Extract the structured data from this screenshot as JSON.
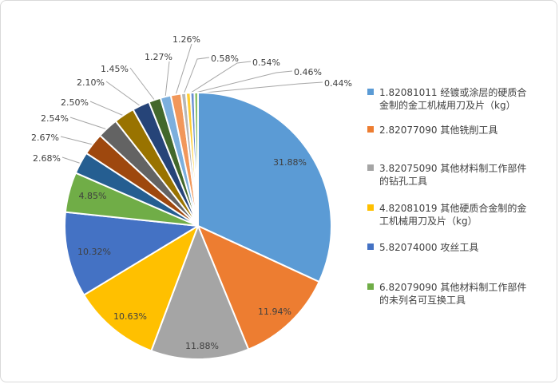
{
  "chart_data": {
    "type": "pie",
    "title": "",
    "legend_position": "right",
    "value_format": "percent",
    "slices": [
      {
        "label": "31.88%",
        "value": 31.88,
        "color": "#5B9BD5"
      },
      {
        "label": "11.94%",
        "value": 11.94,
        "color": "#ED7D31"
      },
      {
        "label": "11.88%",
        "value": 11.88,
        "color": "#A5A5A5"
      },
      {
        "label": "10.63%",
        "value": 10.63,
        "color": "#FFC000"
      },
      {
        "label": "10.32%",
        "value": 10.32,
        "color": "#4472C4"
      },
      {
        "label": "4.85%",
        "value": 4.85,
        "color": "#70AD47"
      },
      {
        "label": "2.68%",
        "value": 2.68,
        "color": "#255E91"
      },
      {
        "label": "2.67%",
        "value": 2.67,
        "color": "#9E480E"
      },
      {
        "label": "2.54%",
        "value": 2.54,
        "color": "#636363"
      },
      {
        "label": "2.50%",
        "value": 2.5,
        "color": "#997300"
      },
      {
        "label": "2.10%",
        "value": 2.1,
        "color": "#264478"
      },
      {
        "label": "1.45%",
        "value": 1.45,
        "color": "#43682B"
      },
      {
        "label": "1.27%",
        "value": 1.27,
        "color": "#7CAFDD"
      },
      {
        "label": "1.26%",
        "value": 1.26,
        "color": "#F1975A"
      },
      {
        "label": "0.58%",
        "value": 0.58,
        "color": "#B7B7B7"
      },
      {
        "label": "0.54%",
        "value": 0.54,
        "color": "#FFCD33"
      },
      {
        "label": "0.46%",
        "value": 0.46,
        "color": "#698ED0"
      },
      {
        "label": "0.44%",
        "value": 0.44,
        "color": "#8CC168"
      }
    ],
    "legend": [
      {
        "label": "1.82081011 经镀或涂层的硬质合金制的金工机械用刀及片（kg）",
        "color": "#5B9BD5"
      },
      {
        "label": "2.82077090 其他铣削工具",
        "color": "#ED7D31"
      },
      {
        "label": "3.82075090 其他材料制工作部件的钻孔工具",
        "color": "#A5A5A5"
      },
      {
        "label": "4.82081019 其他硬质合金制的金工机械用刀及片（kg）",
        "color": "#FFC000"
      },
      {
        "label": "5.82074000 攻丝工具",
        "color": "#4472C4"
      },
      {
        "label": "6.82079090 其他材料制工作部件的未列名可互换工具",
        "color": "#70AD47"
      }
    ]
  }
}
